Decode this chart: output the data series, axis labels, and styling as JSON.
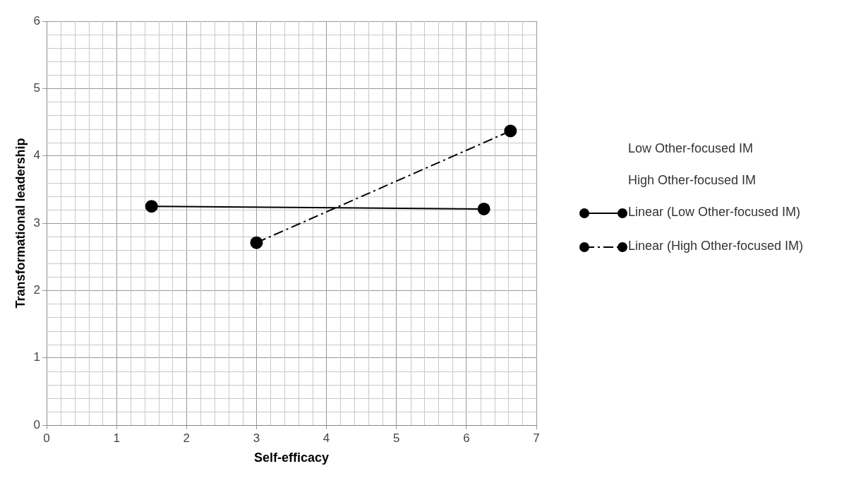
{
  "chart_data": {
    "type": "line",
    "xlabel": "Self-efficacy",
    "ylabel": "Transformational leadership",
    "xlim": [
      0,
      7
    ],
    "xticks": [
      0,
      1,
      2,
      3,
      4,
      5,
      6,
      7
    ],
    "ylim": [
      0,
      6
    ],
    "yticks": [
      0,
      1,
      2,
      3,
      4,
      5,
      6
    ],
    "grid": true,
    "legend": "right",
    "marker": "circle",
    "annotations": [
      "Low Other-focused IM",
      "High Other-focused IM"
    ],
    "series": [
      {
        "name": "Linear (Low Other-focused IM)",
        "color": "#000000",
        "x": [
          1.5,
          6.25
        ],
        "values": [
          3.25,
          3.21
        ],
        "line_style": "solid"
      },
      {
        "name": "Linear (High Other-focused IM)",
        "color": "#000000",
        "x": [
          3.0,
          6.63
        ],
        "values": [
          2.71,
          4.37
        ],
        "line_style": "dashed"
      }
    ]
  }
}
